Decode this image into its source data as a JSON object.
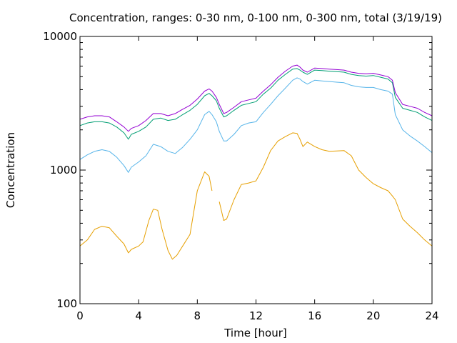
{
  "chart_data": {
    "type": "line",
    "title": "Concentration, ranges: 0-30 nm, 0-100 nm, 0-300 nm, total (3/19/19)",
    "xlabel": "Time [hour]",
    "ylabel": "Concentration",
    "xlim": [
      0,
      24
    ],
    "ylim": [
      100,
      10000
    ],
    "yscale": "log",
    "grid": false,
    "x_ticks": [
      0,
      4,
      8,
      12,
      16,
      20,
      24
    ],
    "x_tick_labels": [
      "0",
      "4",
      "8",
      "12",
      "16",
      "20",
      "24"
    ],
    "y_ticks": [
      100,
      1000,
      10000
    ],
    "y_tick_labels": [
      "100",
      "1000",
      "10000"
    ],
    "series": [
      {
        "color": "#e69f00",
        "x": [
          0,
          0.5,
          1,
          1.5,
          2,
          2.5,
          3,
          3.3,
          3.5,
          4,
          4.3,
          4.7,
          5,
          5.3,
          5.6,
          6,
          6.3,
          6.6,
          7,
          7.5,
          8,
          8.5,
          8.8,
          9,
          9.3,
          9.5,
          9.8,
          10,
          10.5,
          11,
          11.5,
          12,
          12.5,
          13,
          13.5,
          14,
          14.5,
          14.8,
          15,
          15.2,
          15.5,
          16,
          16.5,
          17,
          17.5,
          18,
          18.5,
          19,
          19.5,
          20,
          20.5,
          21,
          21.3,
          21.5,
          22,
          22.5,
          23,
          23.5,
          24
        ],
        "y": [
          270,
          300,
          360,
          380,
          370,
          320,
          280,
          240,
          255,
          270,
          290,
          420,
          510,
          500,
          360,
          250,
          215,
          230,
          270,
          330,
          700,
          970,
          900,
          700,
          null,
          580,
          420,
          430,
          600,
          780,
          800,
          830,
          1050,
          1400,
          1650,
          1780,
          1900,
          1880,
          1700,
          1500,
          1620,
          1500,
          1420,
          1380,
          1390,
          1400,
          1280,
          1000,
          880,
          790,
          740,
          700,
          640,
          600,
          430,
          380,
          340,
          300,
          270
        ]
      },
      {
        "color": "#56b4e9",
        "x": [
          0,
          0.5,
          1,
          1.5,
          2,
          2.5,
          3,
          3.3,
          3.5,
          4,
          4.5,
          5,
          5.5,
          6,
          6.5,
          7,
          7.5,
          8,
          8.5,
          8.8,
          9,
          9.3,
          9.5,
          9.8,
          10,
          10.5,
          11,
          11.5,
          12,
          12.5,
          13,
          13.5,
          14,
          14.5,
          14.8,
          15,
          15.2,
          15.5,
          16,
          16.5,
          17,
          17.5,
          18,
          18.5,
          19,
          19.5,
          20,
          20.5,
          21,
          21.3,
          21.5,
          22,
          22.5,
          23,
          23.5,
          24
        ],
        "y": [
          1200,
          1300,
          1380,
          1420,
          1380,
          1250,
          1080,
          960,
          1050,
          1150,
          1280,
          1560,
          1500,
          1380,
          1330,
          1480,
          1700,
          2000,
          2600,
          2750,
          2600,
          2300,
          1950,
          1650,
          1650,
          1850,
          2150,
          2250,
          2300,
          2700,
          3100,
          3600,
          4100,
          4700,
          4900,
          4800,
          4600,
          4400,
          4700,
          4650,
          4600,
          4550,
          4500,
          4300,
          4200,
          4150,
          4150,
          4000,
          3900,
          3700,
          2600,
          2000,
          1800,
          1650,
          1500,
          1350
        ]
      },
      {
        "color": "#009e73",
        "x": [
          0,
          0.5,
          1,
          1.5,
          2,
          2.5,
          3,
          3.3,
          3.5,
          4,
          4.5,
          5,
          5.5,
          6,
          6.5,
          7,
          7.5,
          8,
          8.5,
          8.8,
          9,
          9.3,
          9.5,
          9.8,
          10,
          10.5,
          11,
          11.5,
          12,
          12.5,
          13,
          13.5,
          14,
          14.5,
          14.8,
          15,
          15.2,
          15.5,
          16,
          16.5,
          17,
          17.5,
          18,
          18.5,
          19,
          19.5,
          20,
          20.5,
          21,
          21.3,
          21.5,
          22,
          22.5,
          23,
          23.5,
          24
        ],
        "y": [
          2150,
          2250,
          2300,
          2300,
          2250,
          2100,
          1900,
          1700,
          1850,
          1950,
          2100,
          2400,
          2450,
          2350,
          2400,
          2600,
          2800,
          3100,
          3600,
          3750,
          3600,
          3300,
          2900,
          2500,
          2550,
          2800,
          3050,
          3150,
          3250,
          3700,
          4100,
          4700,
          5200,
          5700,
          5750,
          5600,
          5400,
          5200,
          5600,
          5550,
          5500,
          5450,
          5400,
          5200,
          5100,
          5050,
          5100,
          4950,
          4800,
          4500,
          3500,
          2900,
          2800,
          2700,
          2500,
          2350
        ]
      },
      {
        "color": "#9400d3",
        "x": [
          0,
          0.5,
          1,
          1.5,
          2,
          2.5,
          3,
          3.3,
          3.5,
          4,
          4.5,
          5,
          5.5,
          6,
          6.5,
          7,
          7.5,
          8,
          8.5,
          8.8,
          9,
          9.3,
          9.5,
          9.8,
          10,
          10.5,
          11,
          11.5,
          12,
          12.5,
          13,
          13.5,
          14,
          14.5,
          14.8,
          15,
          15.2,
          15.5,
          16,
          16.5,
          17,
          17.5,
          18,
          18.5,
          19,
          19.5,
          20,
          20.5,
          21,
          21.3,
          21.5,
          22,
          22.5,
          23,
          23.5,
          24
        ],
        "y": [
          2400,
          2500,
          2550,
          2550,
          2500,
          2300,
          2100,
          1950,
          2050,
          2150,
          2350,
          2650,
          2650,
          2550,
          2650,
          2850,
          3050,
          3400,
          3900,
          4050,
          3900,
          3500,
          3100,
          2650,
          2700,
          2950,
          3250,
          3350,
          3450,
          3900,
          4350,
          4950,
          5500,
          6000,
          6100,
          5900,
          5600,
          5400,
          5800,
          5750,
          5700,
          5650,
          5600,
          5400,
          5300,
          5250,
          5300,
          5150,
          5000,
          4700,
          3800,
          3100,
          3000,
          2900,
          2700,
          2550
        ]
      }
    ]
  }
}
